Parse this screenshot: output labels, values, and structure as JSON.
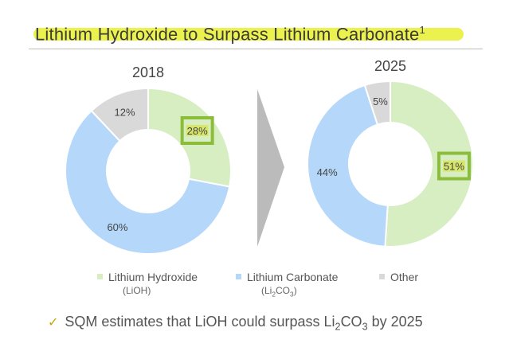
{
  "header": {
    "title": "Lithium Hydroxide to Surpass Lithium Carbonate",
    "footnote_mark": "1"
  },
  "chart_data": [
    {
      "type": "pie",
      "title": "2018",
      "categories": [
        "Lithium Hydroxide",
        "Lithium Carbonate",
        "Other"
      ],
      "values": [
        28,
        60,
        12
      ],
      "labels": [
        "28%",
        "60%",
        "12%"
      ],
      "highlight": "Lithium Hydroxide"
    },
    {
      "type": "pie",
      "title": "2025",
      "categories": [
        "Lithium Hydroxide",
        "Lithium Carbonate",
        "Other"
      ],
      "values": [
        51,
        44,
        5
      ],
      "labels": [
        "51%",
        "44%",
        "5%"
      ],
      "highlight": "Lithium Hydroxide"
    }
  ],
  "legend": {
    "lioh": {
      "label": "Lithium Hydroxide",
      "sub": "(LiOH)"
    },
    "li2co3": {
      "label": "Lithium Carbonate",
      "sub_pre": "(Li",
      "sub_2": "2",
      "sub_mid": "CO",
      "sub_3": "3",
      "sub_post": ")"
    },
    "other": {
      "label": "Other"
    }
  },
  "note": {
    "pre": "SQM estimates that LiOH could surpass Li",
    "sub_2": "2",
    "mid": "CO",
    "sub_3": "3",
    "post": " by 2025"
  },
  "colors": {
    "lioh": "#d6eec2",
    "li2co3": "#b5d8fa",
    "other": "#d9d9d9",
    "highlight_box": "#8cbd3a",
    "highlight_fill": "#d8e55c",
    "title_highlight": "#e9ef3a",
    "arrow": "#bbbbbb"
  }
}
